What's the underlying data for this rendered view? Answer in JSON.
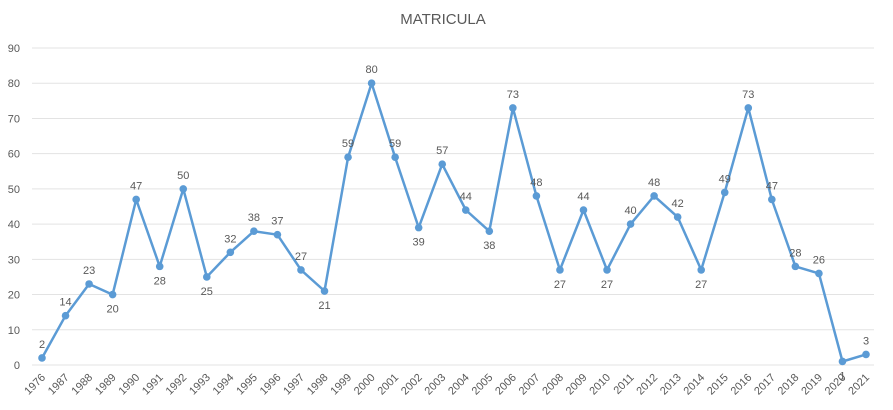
{
  "chart_data": {
    "type": "line",
    "title": "MATRICULA",
    "xlabel": "",
    "ylabel": "",
    "ylim": [
      0,
      90
    ],
    "yticks": [
      0,
      10,
      20,
      30,
      40,
      50,
      60,
      70,
      80,
      90
    ],
    "grid": true,
    "legend": "none",
    "categories": [
      "1976",
      "1987",
      "1988",
      "1989",
      "1990",
      "1991",
      "1992",
      "1993",
      "1994",
      "1995",
      "1996",
      "1997",
      "1998",
      "1999",
      "2000",
      "2001",
      "2002",
      "2003",
      "2004",
      "2005",
      "2006",
      "2007",
      "2008",
      "2009",
      "2010",
      "2011",
      "2012",
      "2013",
      "2014",
      "2015",
      "2016",
      "2017",
      "2018",
      "2019",
      "2020",
      "2021"
    ],
    "series": [
      {
        "values": [
          2,
          14,
          23,
          20,
          47,
          28,
          50,
          25,
          32,
          38,
          37,
          27,
          21,
          59,
          80,
          59,
          39,
          57,
          44,
          38,
          73,
          48,
          27,
          44,
          27,
          40,
          48,
          42,
          27,
          49,
          73,
          47,
          28,
          26,
          1,
          3
        ],
        "color": "#5b9bd5"
      }
    ]
  }
}
